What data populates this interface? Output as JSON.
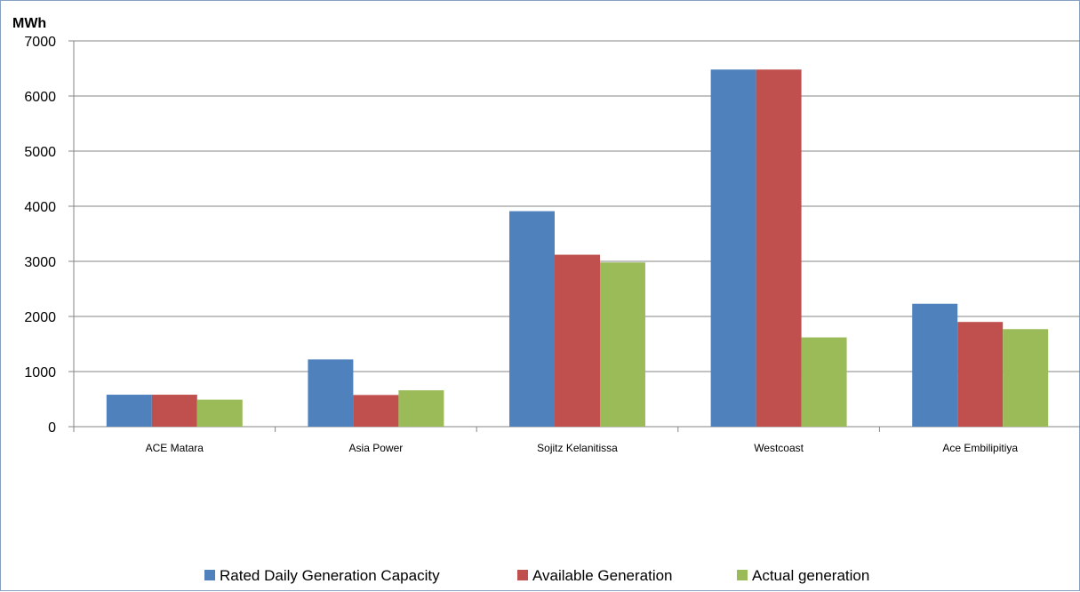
{
  "chart_data": {
    "type": "bar",
    "ylabel": "MWh",
    "ylim": [
      0,
      7000
    ],
    "yticks": [
      0,
      1000,
      2000,
      3000,
      4000,
      5000,
      6000,
      7000
    ],
    "categories": [
      "ACE Matara",
      "Asia Power",
      "Sojitz Kelanitissa",
      "Westcoast",
      "Ace Embilipitiya"
    ],
    "series": [
      {
        "name": "Rated Daily Generation Capacity",
        "color": "#4f81bd",
        "values": [
          580,
          1220,
          3910,
          6480,
          2230
        ]
      },
      {
        "name": "Available Generation",
        "color": "#c0504d",
        "values": [
          580,
          575,
          3120,
          6480,
          1900
        ]
      },
      {
        "name": "Actual generation",
        "color": "#9bbb59",
        "values": [
          490,
          660,
          2980,
          1620,
          1770
        ]
      }
    ],
    "grid": true,
    "legend_position": "bottom"
  }
}
